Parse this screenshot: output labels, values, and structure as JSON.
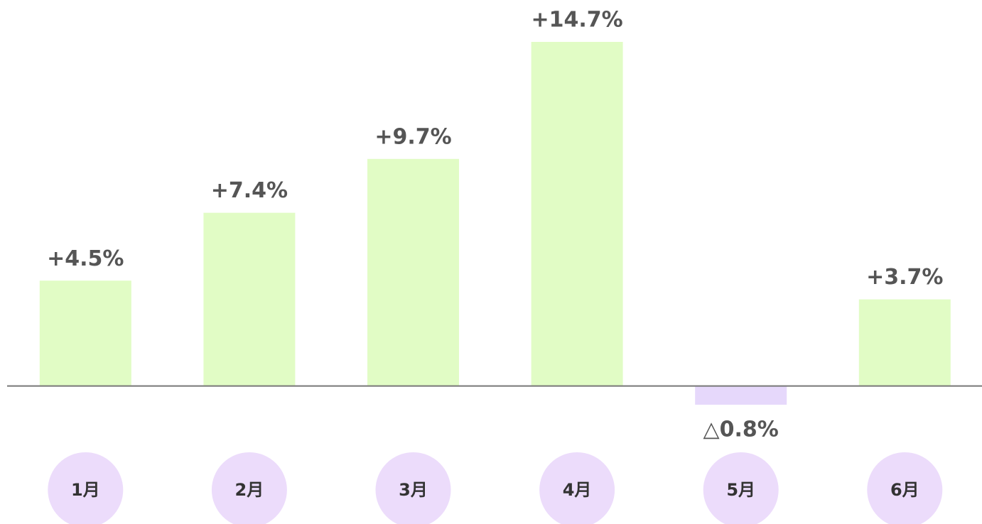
{
  "chart_data": {
    "type": "bar",
    "categories": [
      "1月",
      "2月",
      "3月",
      "4月",
      "5月",
      "6月"
    ],
    "values": [
      4.5,
      7.4,
      9.7,
      14.7,
      -0.8,
      3.7
    ],
    "value_labels": [
      "+4.5%",
      "+7.4%",
      "+9.7%",
      "+14.7%",
      "△0.8%",
      "+3.7%"
    ],
    "positive_color": "#e1fcc5",
    "negative_color": "#e6d8fb"
  }
}
